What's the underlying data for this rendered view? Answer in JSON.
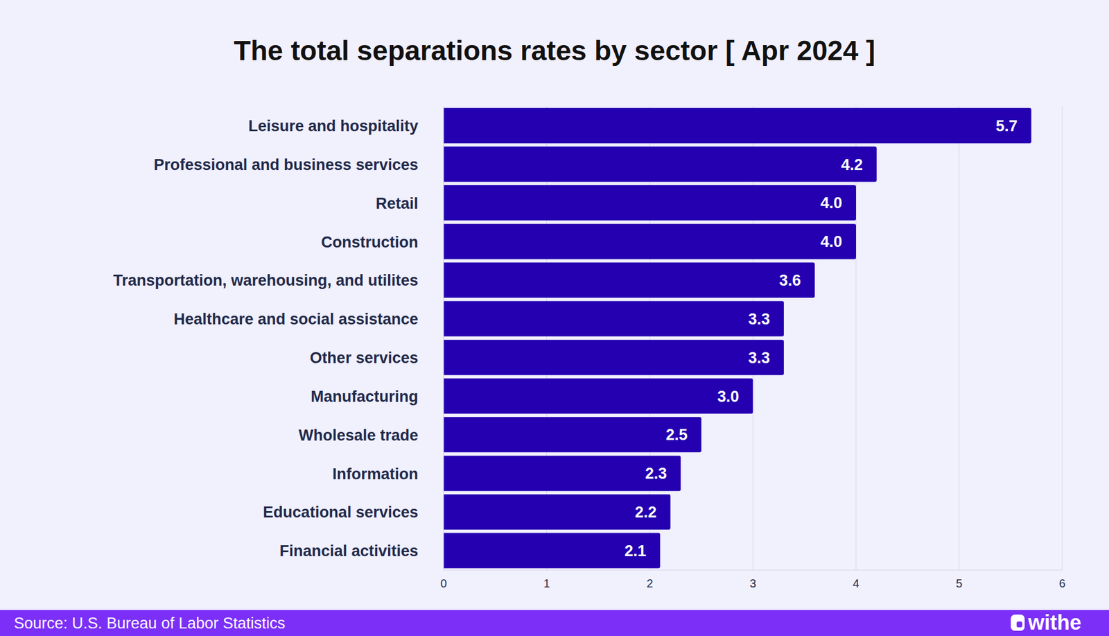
{
  "chart_data": {
    "type": "bar",
    "title": "The total separations rates by sector [ Apr 2024 ]",
    "categories": [
      "Leisure and hospitality",
      "Professional and business services",
      "Retail",
      "Construction",
      "Transportation, warehousing, and utilites",
      "Healthcare and social assistance",
      "Other services",
      "Manufacturing",
      "Wholesale trade",
      "Information",
      "Educational services",
      "Financial activities"
    ],
    "values": [
      5.7,
      4.2,
      4.0,
      4.0,
      3.6,
      3.3,
      3.3,
      3.0,
      2.5,
      2.3,
      2.2,
      2.1
    ],
    "value_labels": [
      "5.7",
      "4.2",
      "4.0",
      "4.0",
      "3.6",
      "3.3",
      "3.3",
      "3.0",
      "2.5",
      "2.3",
      "2.2",
      "2.1"
    ],
    "color": "#2500b0",
    "orientation": "horizontal",
    "data_labels": true,
    "grid": true,
    "xlim": [
      0,
      6
    ],
    "xticks": [
      0,
      1,
      2,
      3,
      4,
      5,
      6
    ],
    "source": "Source: U.S. Bureau of Labor Statistics",
    "logo": "withe"
  }
}
